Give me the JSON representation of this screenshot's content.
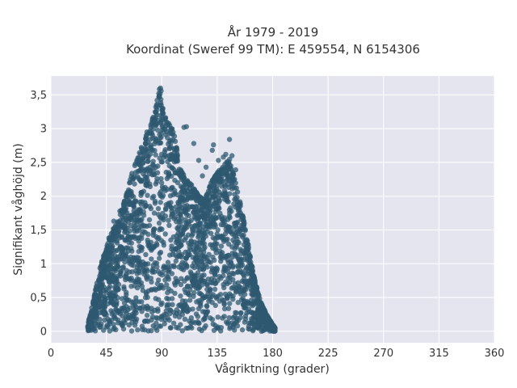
{
  "chart_data": {
    "type": "scatter",
    "title": [
      "År 1979 - 2019",
      "Koordinat (Sweref 99 TM): E 459554, N 6154306"
    ],
    "xlabel": "Vågriktning (grader)",
    "ylabel": "Signifikant våghöjd (m)",
    "xlim": [
      0,
      360
    ],
    "ylim": [
      -0.17,
      3.78
    ],
    "x_ticks": [
      0,
      45,
      90,
      135,
      180,
      225,
      270,
      315,
      360
    ],
    "x_tick_labels": [
      "0",
      "45",
      "90",
      "135",
      "180",
      "225",
      "270",
      "315",
      "360"
    ],
    "y_ticks": [
      0,
      0.5,
      1,
      1.5,
      2,
      2.5,
      3,
      3.5
    ],
    "y_tick_labels": [
      "0",
      "0,5",
      "1",
      "1,5",
      "2",
      "2,5",
      "3",
      "3,5"
    ],
    "grid": true,
    "legend": "none",
    "marker_color": "#2e5870",
    "background_color": "#e5e5f0",
    "envelope": {
      "direction": [
        30,
        35,
        40,
        45,
        50,
        55,
        60,
        65,
        70,
        75,
        80,
        85,
        88,
        90,
        95,
        100,
        105,
        110,
        115,
        120,
        125,
        130,
        135,
        140,
        145,
        150,
        155,
        160,
        165,
        170,
        175,
        180,
        182
      ],
      "max_height": [
        0.1,
        0.5,
        0.95,
        1.25,
        1.5,
        1.65,
        1.95,
        2.3,
        2.55,
        2.8,
        3.0,
        3.3,
        3.6,
        3.35,
        3.1,
        2.95,
        2.4,
        2.25,
        2.15,
        2.0,
        1.95,
        2.2,
        2.35,
        2.45,
        2.55,
        2.2,
        1.8,
        1.3,
        0.8,
        0.45,
        0.25,
        0.1,
        0.05
      ]
    },
    "outliers": [
      {
        "x": 89,
        "y": 3.6
      },
      {
        "x": 89.5,
        "y": 3.56
      },
      {
        "x": 88,
        "y": 3.47
      },
      {
        "x": 110,
        "y": 3.03
      },
      {
        "x": 108,
        "y": 3.02
      },
      {
        "x": 78,
        "y": 2.95
      },
      {
        "x": 116,
        "y": 2.78
      },
      {
        "x": 132,
        "y": 2.76
      },
      {
        "x": 131,
        "y": 2.68
      },
      {
        "x": 145,
        "y": 2.84
      },
      {
        "x": 142,
        "y": 2.62
      },
      {
        "x": 147,
        "y": 2.6
      },
      {
        "x": 140,
        "y": 2.58
      },
      {
        "x": 120,
        "y": 2.53
      },
      {
        "x": 136,
        "y": 2.53
      },
      {
        "x": 126,
        "y": 2.43
      },
      {
        "x": 150,
        "y": 2.39
      },
      {
        "x": 123,
        "y": 2.3
      },
      {
        "x": 67,
        "y": 2.26
      },
      {
        "x": 73,
        "y": 2.22
      },
      {
        "x": 61,
        "y": 1.99
      },
      {
        "x": 62,
        "y": 1.95
      },
      {
        "x": 56,
        "y": 1.78
      },
      {
        "x": 57,
        "y": 1.78
      },
      {
        "x": 51,
        "y": 1.63
      },
      {
        "x": 54,
        "y": 1.62
      },
      {
        "x": 47,
        "y": 1.38
      },
      {
        "x": 48,
        "y": 1.27
      }
    ]
  }
}
